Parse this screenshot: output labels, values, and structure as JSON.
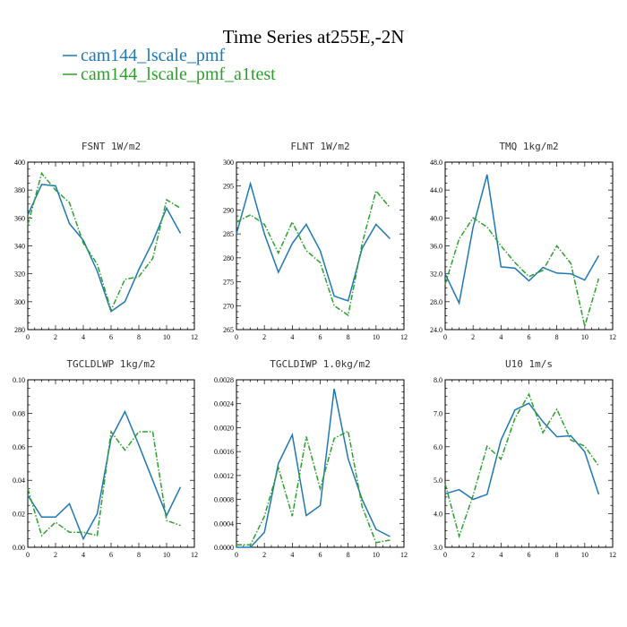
{
  "figure": {
    "title": "Time Series at255E,-2N"
  },
  "legend": [
    {
      "label": "cam144_lscale_pmf",
      "color": "#1f77b4"
    },
    {
      "label": "cam144_lscale_pmf_a1test",
      "color": "#2ca02c"
    }
  ],
  "chart_data": [
    {
      "type": "line",
      "title": "FSNT   1W/m2",
      "x": [
        0,
        1,
        2,
        3,
        4,
        5,
        6,
        7,
        8,
        9,
        10,
        11
      ],
      "xlim": [
        0,
        12
      ],
      "xticks": [
        "0",
        "2",
        "4",
        "6",
        "8",
        "10",
        "12"
      ],
      "ylim": [
        280,
        400
      ],
      "yticks": [
        "280",
        "300",
        "320",
        "340",
        "360",
        "380",
        "400"
      ],
      "series": [
        {
          "name": "cam144_lscale_pmf",
          "color": "#1f77b4",
          "dashed": false,
          "values": [
            362,
            384,
            383,
            356,
            344,
            322,
            293,
            300,
            323,
            343,
            367,
            349
          ]
        },
        {
          "name": "cam144_lscale_pmf_a1test",
          "color": "#2ca02c",
          "dashed": true,
          "values": [
            355,
            392,
            380,
            371,
            342,
            327,
            294,
            316,
            318,
            331,
            373,
            367
          ]
        }
      ]
    },
    {
      "type": "line",
      "title": "FLNT   1W/m2",
      "x": [
        0,
        1,
        2,
        3,
        4,
        5,
        6,
        7,
        8,
        9,
        10,
        11
      ],
      "xlim": [
        0,
        12
      ],
      "xticks": [
        "0",
        "2",
        "4",
        "6",
        "8",
        "10",
        "12"
      ],
      "ylim": [
        265,
        300
      ],
      "yticks": [
        "265",
        "270",
        "275",
        "280",
        "285",
        "290",
        "295",
        "300"
      ],
      "series": [
        {
          "name": "cam144_lscale_pmf",
          "color": "#1f77b4",
          "dashed": false,
          "values": [
            285,
            295.5,
            285,
            277,
            283,
            287,
            281.5,
            272,
            271,
            282,
            287,
            284
          ]
        },
        {
          "name": "cam144_lscale_pmf_a1test",
          "color": "#2ca02c",
          "dashed": true,
          "values": [
            287.5,
            289,
            287,
            281,
            287.5,
            281.5,
            279,
            270,
            268,
            283,
            294,
            290.5
          ]
        }
      ]
    },
    {
      "type": "line",
      "title": "TMQ   1kg/m2",
      "x": [
        0,
        1,
        2,
        3,
        4,
        5,
        6,
        7,
        8,
        9,
        10,
        11
      ],
      "xlim": [
        0,
        12
      ],
      "xticks": [
        "0",
        "2",
        "4",
        "6",
        "8",
        "10",
        "12"
      ],
      "ylim": [
        24,
        48
      ],
      "yticks": [
        "24.0",
        "28.0",
        "32.0",
        "36.0",
        "40.0",
        "44.0",
        "48.0"
      ],
      "series": [
        {
          "name": "cam144_lscale_pmf",
          "color": "#1f77b4",
          "dashed": false,
          "values": [
            32,
            27.8,
            38.7,
            46.2,
            33,
            32.8,
            31,
            32.9,
            32.1,
            32,
            31.1,
            34.6
          ]
        },
        {
          "name": "cam144_lscale_pmf_a1test",
          "color": "#2ca02c",
          "dashed": true,
          "values": [
            30.5,
            37,
            40,
            38.7,
            36,
            33.6,
            31.6,
            32.5,
            36,
            33.5,
            24.5,
            31.3
          ]
        }
      ]
    },
    {
      "type": "line",
      "title": "TGCLDLWP   1kg/m2",
      "x": [
        0,
        1,
        2,
        3,
        4,
        5,
        6,
        7,
        8,
        9,
        10,
        11
      ],
      "xlim": [
        0,
        12
      ],
      "xticks": [
        "0",
        "2",
        "4",
        "6",
        "8",
        "10",
        "12"
      ],
      "ylim": [
        0,
        0.1
      ],
      "yticks": [
        "0.00",
        "0.02",
        "0.04",
        "0.06",
        "0.08",
        "0.10"
      ],
      "series": [
        {
          "name": "cam144_lscale_pmf",
          "color": "#1f77b4",
          "dashed": false,
          "values": [
            0.031,
            0.018,
            0.018,
            0.026,
            0.005,
            0.02,
            0.065,
            0.081,
            0.061,
            0.04,
            0.019,
            0.036
          ]
        },
        {
          "name": "cam144_lscale_pmf_a1test",
          "color": "#2ca02c",
          "dashed": true,
          "values": [
            0.035,
            0.007,
            0.015,
            0.009,
            0.009,
            0.007,
            0.069,
            0.058,
            0.069,
            0.069,
            0.016,
            0.013
          ]
        }
      ]
    },
    {
      "type": "line",
      "title": "TGCLDIWP   1.0kg/m2",
      "x": [
        0,
        1,
        2,
        3,
        4,
        5,
        6,
        7,
        8,
        9,
        10,
        11
      ],
      "xlim": [
        0,
        12
      ],
      "xticks": [
        "0",
        "2",
        "4",
        "6",
        "8",
        "10",
        "12"
      ],
      "ylim": [
        0,
        0.0028
      ],
      "yticks": [
        "0.0000",
        "0.0004",
        "0.0008",
        "0.0012",
        "0.0016",
        "0.0020",
        "0.0024",
        "0.0028"
      ],
      "series": [
        {
          "name": "cam144_lscale_pmf",
          "color": "#1f77b4",
          "dashed": false,
          "values": [
            0.0,
            0.0,
            0.00025,
            0.0014,
            0.00188,
            0.00053,
            0.0007,
            0.00265,
            0.00148,
            0.0008,
            0.0003,
            0.00018
          ]
        },
        {
          "name": "cam144_lscale_pmf_a1test",
          "color": "#2ca02c",
          "dashed": true,
          "values": [
            4e-05,
            4e-05,
            0.00052,
            0.00133,
            0.00052,
            0.00185,
            0.00098,
            0.00182,
            0.00194,
            0.00068,
            8e-05,
            0.00012
          ]
        }
      ]
    },
    {
      "type": "line",
      "title": "U10   1m/s",
      "x": [
        0,
        1,
        2,
        3,
        4,
        5,
        6,
        7,
        8,
        9,
        10,
        11
      ],
      "xlim": [
        0,
        12
      ],
      "xticks": [
        "0",
        "2",
        "4",
        "6",
        "8",
        "10",
        "12"
      ],
      "ylim": [
        3,
        8
      ],
      "yticks": [
        "3.0",
        "4.0",
        "5.0",
        "6.0",
        "7.0",
        "8.0"
      ],
      "series": [
        {
          "name": "cam144_lscale_pmf",
          "color": "#1f77b4",
          "dashed": false,
          "values": [
            4.6,
            4.72,
            4.43,
            4.58,
            6.2,
            7.1,
            7.3,
            6.75,
            6.3,
            6.33,
            5.85,
            4.58
          ]
        },
        {
          "name": "cam144_lscale_pmf_a1test",
          "color": "#2ca02c",
          "dashed": true,
          "values": [
            4.9,
            3.33,
            4.55,
            6.02,
            5.63,
            6.85,
            7.57,
            6.42,
            7.12,
            6.2,
            6.02,
            5.43
          ]
        }
      ]
    }
  ]
}
